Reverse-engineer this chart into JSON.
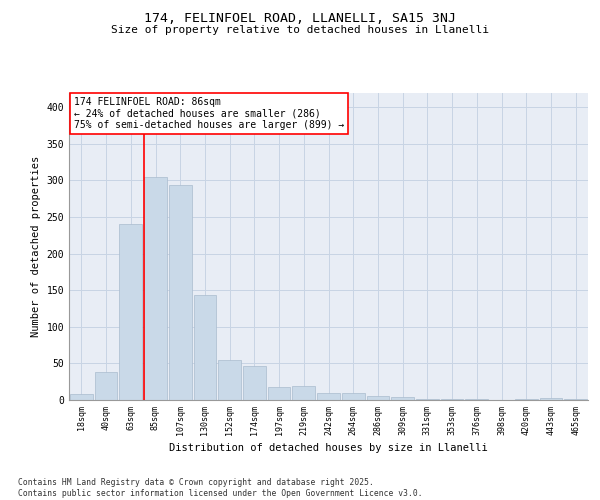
{
  "title1": "174, FELINFOEL ROAD, LLANELLI, SA15 3NJ",
  "title2": "Size of property relative to detached houses in Llanelli",
  "xlabel": "Distribution of detached houses by size in Llanelli",
  "ylabel": "Number of detached properties",
  "categories": [
    "18sqm",
    "40sqm",
    "63sqm",
    "85sqm",
    "107sqm",
    "130sqm",
    "152sqm",
    "174sqm",
    "197sqm",
    "219sqm",
    "242sqm",
    "264sqm",
    "286sqm",
    "309sqm",
    "331sqm",
    "353sqm",
    "376sqm",
    "398sqm",
    "420sqm",
    "443sqm",
    "465sqm"
  ],
  "values": [
    8,
    38,
    240,
    305,
    293,
    143,
    55,
    46,
    18,
    19,
    10,
    10,
    5,
    4,
    2,
    1,
    1,
    0,
    1,
    3,
    2
  ],
  "bar_color": "#c9d9e8",
  "bar_edge_color": "#aabcce",
  "vline_index": 3,
  "annotation_text": "174 FELINFOEL ROAD: 86sqm\n← 24% of detached houses are smaller (286)\n75% of semi-detached houses are larger (899) →",
  "annotation_box_color": "white",
  "annotation_box_edge": "red",
  "vline_color": "red",
  "grid_color": "#c8d4e4",
  "bg_color": "#e8edf5",
  "footer": "Contains HM Land Registry data © Crown copyright and database right 2025.\nContains public sector information licensed under the Open Government Licence v3.0.",
  "ylim": [
    0,
    420
  ],
  "yticks": [
    0,
    50,
    100,
    150,
    200,
    250,
    300,
    350,
    400
  ]
}
